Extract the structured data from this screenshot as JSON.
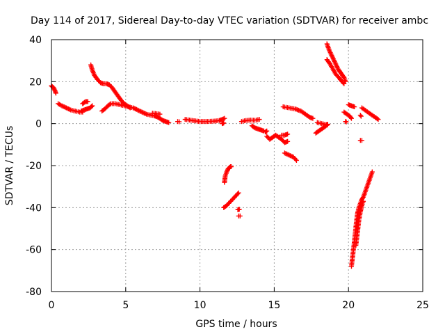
{
  "chart_data": {
    "type": "scatter",
    "title": "Day 114 of 2017, Sidereal Day-to-day VTEC variation (SDTVAR) for receiver ambc",
    "xlabel": "GPS time / hours",
    "ylabel": "SDTVAR / TECUs",
    "xlim": [
      0,
      25
    ],
    "ylim": [
      -80,
      40
    ],
    "xticks": [
      0,
      5,
      10,
      15,
      20,
      25
    ],
    "yticks": [
      -80,
      -60,
      -40,
      -20,
      0,
      20,
      40
    ],
    "xtick_labels": [
      "0",
      "5",
      "10",
      "15",
      "20",
      "25"
    ],
    "ytick_labels": [
      "-80",
      "-60",
      "-40",
      "-20",
      "0",
      "20",
      "40"
    ],
    "grid": true,
    "marker": "plus",
    "series_color": "#ff0000",
    "series": [
      {
        "name": "SDTVAR",
        "tracks": [
          [
            [
              0.0,
              18
            ],
            [
              0.15,
              17
            ],
            [
              0.25,
              15.5
            ],
            [
              0.3,
              14.5
            ]
          ],
          [
            [
              0.45,
              9.5
            ],
            [
              0.7,
              8.5
            ],
            [
              1.0,
              7.5
            ],
            [
              1.3,
              6.5
            ],
            [
              1.6,
              6.0
            ],
            [
              1.9,
              5.5
            ],
            [
              2.1,
              5.5
            ]
          ],
          [
            [
              2.0,
              6
            ],
            [
              2.2,
              6.5
            ],
            [
              2.4,
              7.0
            ],
            [
              2.6,
              7.5
            ],
            [
              2.75,
              8.5
            ]
          ],
          [
            [
              2.1,
              9.5
            ],
            [
              2.3,
              10.5
            ],
            [
              2.45,
              10.5
            ]
          ],
          [
            [
              2.65,
              28
            ],
            [
              2.75,
              25.5
            ],
            [
              2.9,
              23
            ],
            [
              3.1,
              21
            ],
            [
              3.3,
              19.5
            ],
            [
              3.5,
              19
            ],
            [
              3.7,
              19
            ],
            [
              3.9,
              18.5
            ],
            [
              4.1,
              17
            ],
            [
              4.3,
              15
            ],
            [
              4.5,
              13
            ],
            [
              4.7,
              11
            ],
            [
              4.9,
              9.5
            ],
            [
              5.1,
              8.5
            ],
            [
              5.3,
              7.5
            ]
          ],
          [
            [
              3.4,
              6
            ],
            [
              3.6,
              7.0
            ],
            [
              3.8,
              8.5
            ],
            [
              4.0,
              9.5
            ],
            [
              4.3,
              9.5
            ],
            [
              4.6,
              9.0
            ],
            [
              4.9,
              8.5
            ],
            [
              5.2,
              8.0
            ],
            [
              5.5,
              7.5
            ],
            [
              5.8,
              6.5
            ],
            [
              6.1,
              5.5
            ],
            [
              6.4,
              4.5
            ],
            [
              6.7,
              4.0
            ],
            [
              6.9,
              3.8
            ]
          ],
          [
            [
              6.9,
              3.8
            ],
            [
              7.1,
              3.3
            ],
            [
              7.3,
              2.5
            ],
            [
              7.5,
              1.5
            ],
            [
              7.7,
              1.0
            ],
            [
              7.9,
              0.5
            ]
          ],
          [
            [
              6.8,
              5
            ],
            [
              7.1,
              4.7
            ],
            [
              7.3,
              4.5
            ]
          ],
          [
            [
              8.5,
              1
            ],
            [
              8.6,
              0.9
            ]
          ],
          [
            [
              9.0,
              2
            ],
            [
              9.5,
              1.5
            ],
            [
              10.0,
              1.0
            ],
            [
              10.5,
              1.0
            ],
            [
              11.0,
              1.2
            ],
            [
              11.3,
              1.5
            ],
            [
              11.5,
              2.0
            ],
            [
              11.65,
              2.5
            ]
          ],
          [
            [
              11.5,
              0
            ],
            [
              11.6,
              0.3
            ]
          ],
          [
            [
              11.65,
              -28
            ],
            [
              11.7,
              -25
            ],
            [
              11.8,
              -23
            ],
            [
              11.9,
              -21.5
            ],
            [
              12.05,
              -20.5
            ],
            [
              12.1,
              -20.5
            ]
          ],
          [
            [
              11.6,
              -40
            ],
            [
              11.8,
              -39
            ],
            [
              12.0,
              -37.5
            ],
            [
              12.2,
              -36
            ],
            [
              12.4,
              -34.5
            ],
            [
              12.6,
              -33
            ]
          ],
          [
            [
              12.55,
              -41
            ],
            [
              12.65,
              -40.8
            ]
          ],
          [
            [
              12.6,
              -44
            ],
            [
              12.7,
              -44
            ]
          ],
          [
            [
              12.8,
              1
            ],
            [
              13.1,
              1.5
            ],
            [
              13.4,
              1.7
            ],
            [
              13.7,
              1.6
            ],
            [
              14.0,
              2.0
            ]
          ],
          [
            [
              13.5,
              -1
            ],
            [
              13.7,
              -2
            ],
            [
              13.9,
              -2.5
            ],
            [
              14.1,
              -3
            ],
            [
              14.3,
              -3.5
            ]
          ],
          [
            [
              14.4,
              -4
            ],
            [
              14.5,
              -3.5
            ]
          ],
          [
            [
              14.5,
              -6
            ],
            [
              14.7,
              -7.5
            ],
            [
              14.9,
              -6.5
            ],
            [
              15.1,
              -5.5
            ],
            [
              15.3,
              -6.5
            ],
            [
              15.5,
              -7.5
            ],
            [
              15.7,
              -9
            ],
            [
              15.9,
              -8.5
            ]
          ],
          [
            [
              15.5,
              -5.5
            ],
            [
              15.7,
              -5.5
            ],
            [
              15.9,
              -5.0
            ]
          ],
          [
            [
              15.6,
              8
            ],
            [
              16.0,
              7.5
            ],
            [
              16.4,
              7.0
            ],
            [
              16.8,
              6.0
            ],
            [
              17.1,
              4.5
            ],
            [
              17.4,
              3.0
            ],
            [
              17.6,
              2.5
            ]
          ],
          [
            [
              15.7,
              -14
            ],
            [
              16.0,
              -15
            ],
            [
              16.3,
              -16
            ],
            [
              16.5,
              -17.5
            ]
          ],
          [
            [
              17.8,
              -4.5
            ],
            [
              18.0,
              -3.5
            ],
            [
              18.2,
              -2.5
            ],
            [
              18.4,
              -1.5
            ],
            [
              18.6,
              -0.5
            ]
          ],
          [
            [
              17.9,
              0.5
            ],
            [
              18.2,
              0.0
            ],
            [
              18.5,
              -0.5
            ],
            [
              18.6,
              -0.3
            ]
          ],
          [
            [
              18.55,
              38
            ],
            [
              18.7,
              35
            ],
            [
              18.9,
              32
            ],
            [
              19.1,
              29
            ],
            [
              19.3,
              26
            ],
            [
              19.5,
              24
            ],
            [
              19.7,
              22
            ],
            [
              19.8,
              20
            ]
          ],
          [
            [
              18.55,
              30.5
            ],
            [
              18.75,
              28.5
            ],
            [
              18.95,
              26
            ],
            [
              19.15,
              23.5
            ],
            [
              19.35,
              22
            ],
            [
              19.5,
              20.5
            ],
            [
              19.7,
              19
            ]
          ],
          [
            [
              19.7,
              5.5
            ],
            [
              19.9,
              4.5
            ],
            [
              20.1,
              3.5
            ],
            [
              20.2,
              2.5
            ]
          ],
          [
            [
              19.8,
              1
            ],
            [
              19.85,
              0.8
            ]
          ],
          [
            [
              20.0,
              9
            ],
            [
              20.2,
              8.5
            ],
            [
              20.4,
              8.0
            ]
          ],
          [
            [
              20.2,
              -68
            ],
            [
              20.3,
              -62
            ],
            [
              20.4,
              -56
            ],
            [
              20.5,
              -49
            ],
            [
              20.6,
              -43
            ],
            [
              20.7,
              -40
            ],
            [
              20.8,
              -38
            ],
            [
              20.9,
              -36
            ],
            [
              21.0,
              -35
            ],
            [
              21.1,
              -33
            ],
            [
              21.2,
              -31
            ],
            [
              21.3,
              -29
            ],
            [
              21.4,
              -27
            ],
            [
              21.5,
              -25
            ],
            [
              21.6,
              -23
            ]
          ],
          [
            [
              20.5,
              -58
            ],
            [
              20.6,
              -52
            ],
            [
              20.7,
              -46
            ],
            [
              20.8,
              -42
            ],
            [
              20.9,
              -39
            ],
            [
              21.0,
              -37
            ]
          ],
          [
            [
              20.8,
              4
            ],
            [
              20.85,
              3.5
            ]
          ],
          [
            [
              20.8,
              -8
            ],
            [
              20.9,
              -8
            ]
          ],
          [
            [
              20.9,
              7.5
            ],
            [
              21.2,
              6.0
            ],
            [
              21.5,
              4.5
            ],
            [
              21.8,
              3.0
            ],
            [
              22.0,
              2.0
            ]
          ]
        ]
      }
    ]
  }
}
